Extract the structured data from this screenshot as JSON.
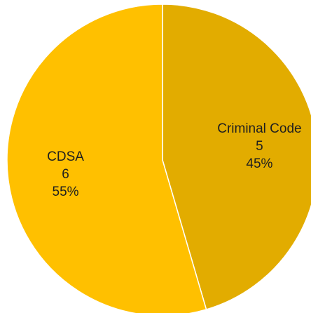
{
  "chart_data": {
    "type": "pie",
    "title": "",
    "categories": [
      "Criminal Code",
      "CDSA"
    ],
    "values": [
      5,
      6
    ],
    "percentages": [
      "45%",
      "55%"
    ],
    "colors": [
      "#E2AC00",
      "#FFC000"
    ],
    "start_angle_deg": 0,
    "direction": "clockwise",
    "legend": "none",
    "labels_inside": true
  }
}
